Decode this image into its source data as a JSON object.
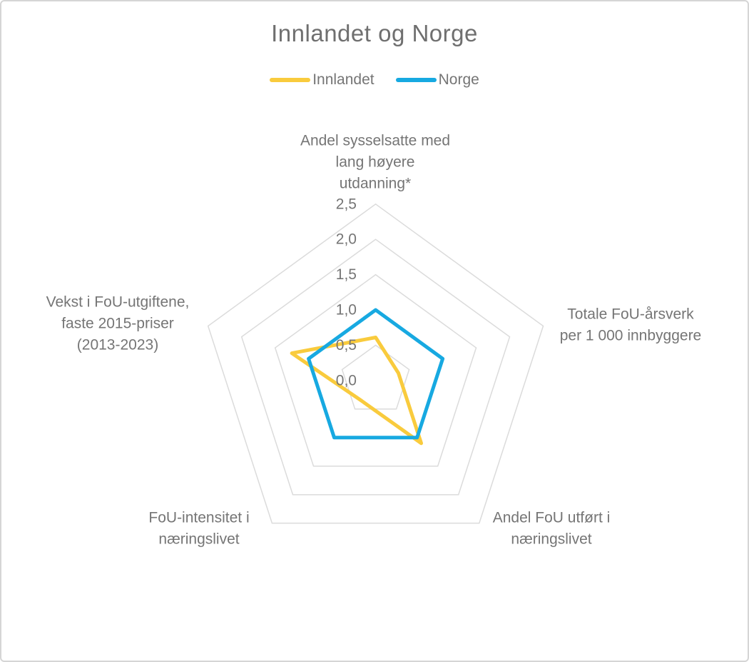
{
  "title": "Innlandet og Norge",
  "chart_data": {
    "type": "radar",
    "shape": "pentagon",
    "categories": [
      "Andel sysselsatte med lang høyere utdanning*",
      "Totale FoU-årsverk per 1 000 innbyggere",
      "Andel FoU utført i næringslivet",
      "FoU-intensitet i næringslivet",
      "Vekst i FoU-utgiftene, faste 2015-priser (2013-2023)"
    ],
    "series": [
      {
        "name": "Innlandet",
        "color": "#F9CB3D",
        "values": [
          0.61,
          0.34,
          1.1,
          0.35,
          1.25
        ]
      },
      {
        "name": "Norge",
        "color": "#17A9E1",
        "values": [
          1.0,
          1.0,
          1.0,
          1.0,
          1.0
        ]
      }
    ],
    "radial_ticks": [
      "0,0",
      "0,5",
      "1,0",
      "1,5",
      "2,0",
      "2,5"
    ],
    "radial_range": [
      0,
      2.5
    ],
    "grid_rings": [
      0.5,
      1.0,
      1.5,
      2.0,
      2.5
    ],
    "grid_on": true,
    "legend_position": "top",
    "grid_color": "#DBDBDB",
    "text_color": "#757575",
    "title_color": "#6F6F6F"
  },
  "axis_labels": {
    "top": [
      "Andel sysselsatte med",
      "lang høyere",
      "utdanning*"
    ],
    "right": [
      "Totale FoU-årsverk",
      "per 1 000 innbyggere"
    ],
    "bottom_right": [
      "Andel FoU utført i",
      "næringslivet"
    ],
    "bottom_left": [
      "FoU-intensitet i",
      "næringslivet"
    ],
    "left": [
      "Vekst i FoU-utgiftene,",
      "faste 2015-priser",
      "(2013-2023)"
    ]
  }
}
